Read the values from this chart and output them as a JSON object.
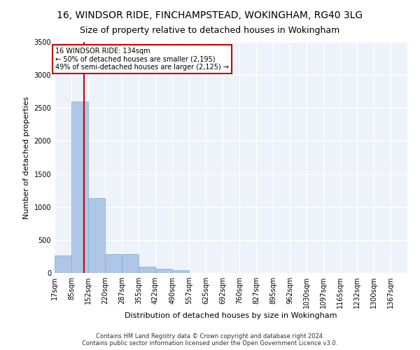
{
  "title_line1": "16, WINDSOR RIDE, FINCHAMPSTEAD, WOKINGHAM, RG40 3LG",
  "title_line2": "Size of property relative to detached houses in Wokingham",
  "xlabel": "Distribution of detached houses by size in Wokingham",
  "ylabel": "Number of detached properties",
  "bar_color": "#aec6e8",
  "bar_edge_color": "#7aafd4",
  "background_color": "#eef2f9",
  "grid_color": "#ffffff",
  "annotation_text": "16 WINDSOR RIDE: 134sqm\n← 50% of detached houses are smaller (2,195)\n49% of semi-detached houses are larger (2,125) →",
  "vline_x": 134,
  "vline_color": "#cc0000",
  "bins": [
    17,
    85,
    152,
    220,
    287,
    355,
    422,
    490,
    557,
    625,
    692,
    760,
    827,
    895,
    962,
    1030,
    1097,
    1165,
    1232,
    1300,
    1367
  ],
  "counts": [
    270,
    2600,
    1130,
    290,
    290,
    95,
    65,
    45,
    5,
    5,
    2,
    2,
    2,
    2,
    2,
    2,
    2,
    2,
    2,
    2
  ],
  "ylim": [
    0,
    3500
  ],
  "yticks": [
    0,
    500,
    1000,
    1500,
    2000,
    2500,
    3000,
    3500
  ],
  "footnote": "Contains HM Land Registry data © Crown copyright and database right 2024.\nContains public sector information licensed under the Open Government Licence v3.0.",
  "title_fontsize": 10,
  "subtitle_fontsize": 9,
  "axis_label_fontsize": 8,
  "tick_fontsize": 7,
  "footnote_fontsize": 6
}
